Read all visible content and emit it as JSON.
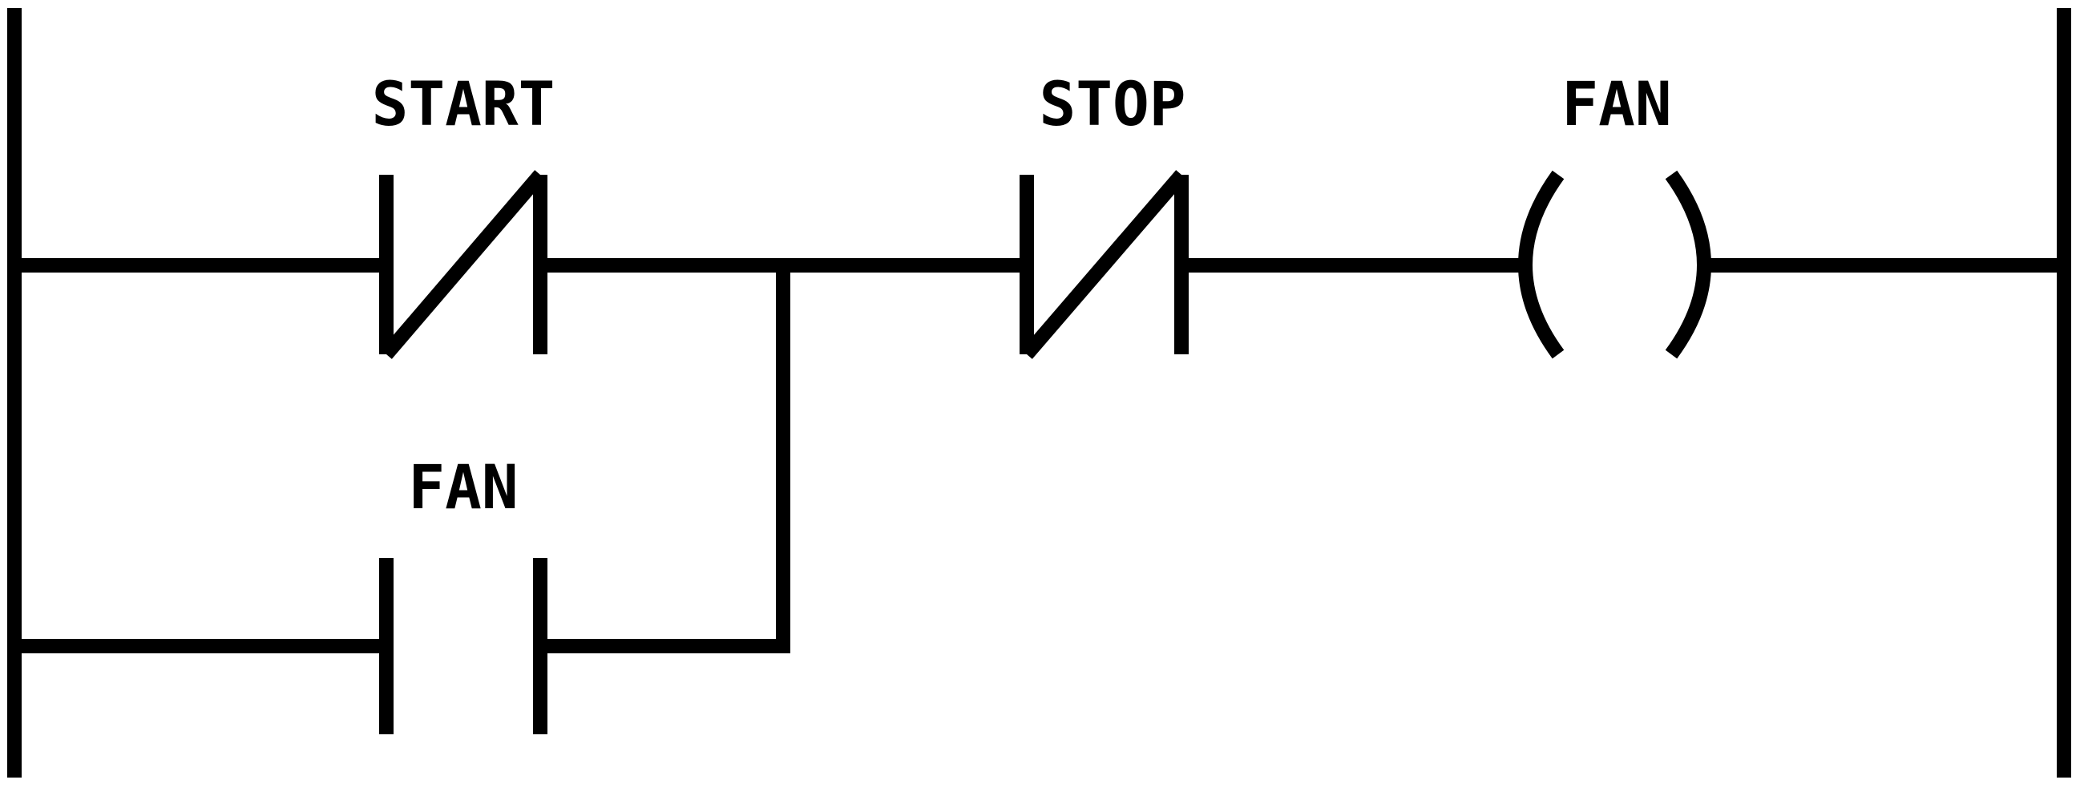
{
  "diagram": {
    "type": "ladder-logic",
    "colors": {
      "line": "#000000",
      "background": "#ffffff"
    },
    "rungs": [
      {
        "elements": [
          {
            "kind": "normally-closed-contact",
            "label": "START"
          },
          {
            "kind": "normally-closed-contact",
            "label": "STOP"
          },
          {
            "kind": "output-coil",
            "label": "FAN"
          }
        ]
      },
      {
        "branch_of_rung": 1,
        "elements": [
          {
            "kind": "normally-open-contact",
            "label": "FAN"
          }
        ]
      }
    ]
  }
}
